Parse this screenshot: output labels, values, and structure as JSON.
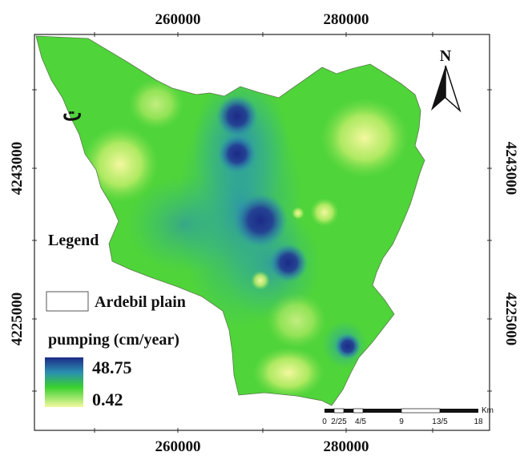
{
  "map_label": "ت",
  "north_label": "N",
  "coordinates": {
    "top": [
      "260000",
      "280000"
    ],
    "bottom": [
      "260000",
      "280000"
    ],
    "left": [
      "4243000",
      "4225000"
    ],
    "right": [
      "4243000",
      "4225000"
    ]
  },
  "legend": {
    "heading": "Legend",
    "boundary_label": "Ardebil plain",
    "variable_label": "pumping (cm/year)",
    "max_value": "48.75",
    "min_value": "0.42",
    "colors": {
      "high": "#1c2a86",
      "mid": "#2a8fb0",
      "green": "#39d12e",
      "low": "#f4f8a0"
    }
  },
  "scale_bar": {
    "unit": "Km",
    "ticks": [
      "0",
      "2/25",
      "4/5",
      "9",
      "13/5",
      "18"
    ]
  }
}
